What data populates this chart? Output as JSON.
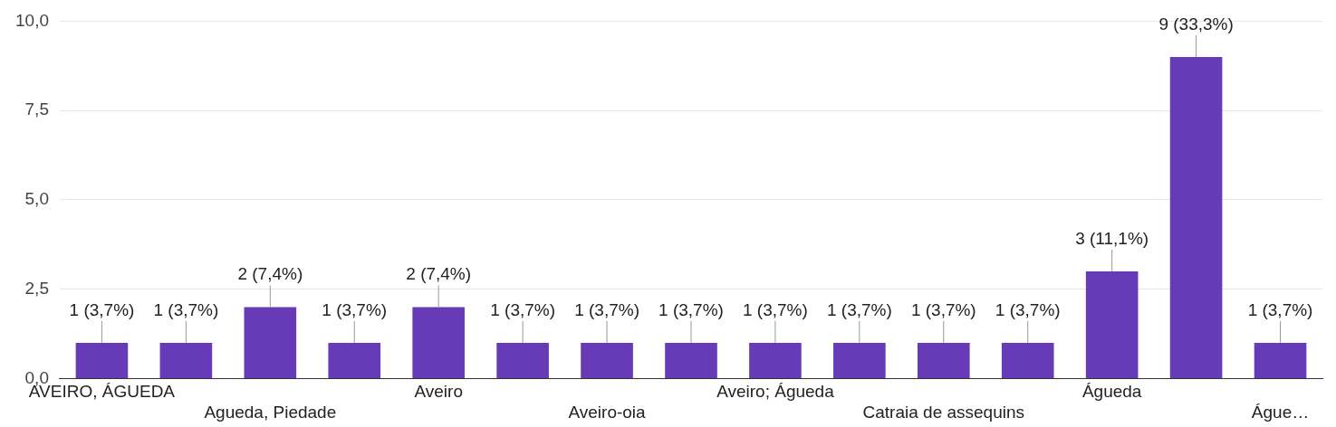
{
  "chart_data": {
    "type": "bar",
    "categories": [
      "AVEIRO, ÁGUEDA",
      null,
      "Agueda, Piedade",
      null,
      "Aveiro",
      null,
      "Aveiro-oia",
      null,
      "Aveiro; Águeda",
      null,
      "Catraia de assequins",
      null,
      "Águeda",
      null,
      "Águe…"
    ],
    "values": [
      1,
      1,
      2,
      1,
      2,
      1,
      1,
      1,
      1,
      1,
      1,
      1,
      3,
      9,
      1
    ],
    "value_labels": [
      "1 (3,7%)",
      "1 (3,7%)",
      "2 (7,4%)",
      "1 (3,7%)",
      "2 (7,4%)",
      "1 (3,7%)",
      "1 (3,7%)",
      "1 (3,7%)",
      "1 (3,7%)",
      "1 (3,7%)",
      "1 (3,7%)",
      "1 (3,7%)",
      "3 (11,1%)",
      "9 (33,3%)",
      "1 (3,7%)"
    ],
    "color": "#673ab7",
    "ylim": [
      0,
      10
    ],
    "yticks": [
      {
        "value": 0,
        "label": "0,0"
      },
      {
        "value": 2.5,
        "label": "2,5"
      },
      {
        "value": 5,
        "label": "5,0"
      },
      {
        "value": 7.5,
        "label": "7,5"
      },
      {
        "value": 10,
        "label": "10,0"
      }
    ],
    "grid": "y",
    "legend": false
  }
}
